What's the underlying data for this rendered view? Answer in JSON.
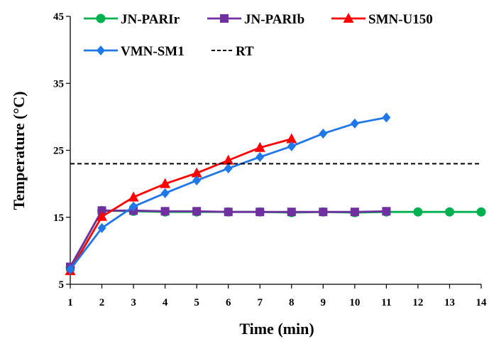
{
  "chart_data": {
    "type": "line",
    "xlabel": "Time (min)",
    "ylabel": "Temperature  (°C)",
    "xlim": [
      1,
      14
    ],
    "ylim": [
      5,
      45
    ],
    "xticks": [
      "1",
      "2",
      "3",
      "4",
      "5",
      "6",
      "7",
      "8",
      "9",
      "10",
      "11",
      "12",
      "13",
      "14"
    ],
    "yticks": [
      "5",
      "15",
      "25",
      "35",
      "45"
    ],
    "grid": false,
    "legend_position": "top",
    "series": [
      {
        "name": "JN-PARIr",
        "color": "#00B050",
        "marker": "circle",
        "x": [
          1,
          2,
          3,
          4,
          5,
          6,
          7,
          8,
          9,
          10,
          11,
          12,
          13,
          14
        ],
        "y": [
          7.5,
          16.0,
          15.9,
          15.8,
          15.8,
          15.8,
          15.8,
          15.7,
          15.8,
          15.7,
          15.8,
          15.8,
          15.8,
          15.8
        ]
      },
      {
        "name": "JN-PARIb",
        "color": "#7030A0",
        "marker": "square",
        "x": [
          1,
          2,
          3,
          4,
          5,
          6,
          7,
          8,
          9,
          10,
          11
        ],
        "y": [
          7.6,
          16.0,
          16.0,
          15.9,
          15.9,
          15.8,
          15.8,
          15.8,
          15.8,
          15.8,
          15.9
        ]
      },
      {
        "name": "SMN-U150",
        "color": "#FF0000",
        "marker": "triangle",
        "x": [
          1,
          2,
          3,
          4,
          5,
          6,
          7,
          8
        ],
        "y": [
          7.0,
          15.1,
          18.0,
          20.0,
          21.6,
          23.5,
          25.4,
          26.7
        ]
      },
      {
        "name": "VMN-SM1",
        "color": "#1F77E8",
        "marker": "diamond",
        "x": [
          1,
          2,
          3,
          4,
          5,
          6,
          7,
          8,
          9,
          10,
          11
        ],
        "y": [
          7.2,
          13.4,
          16.6,
          18.6,
          20.5,
          22.3,
          24.0,
          25.6,
          27.5,
          29.0,
          29.9
        ]
      },
      {
        "name": "RT",
        "color": "#000000",
        "marker": "none",
        "dashed": true,
        "x": [
          1,
          14
        ],
        "y": [
          23.0,
          23.0
        ]
      }
    ]
  }
}
